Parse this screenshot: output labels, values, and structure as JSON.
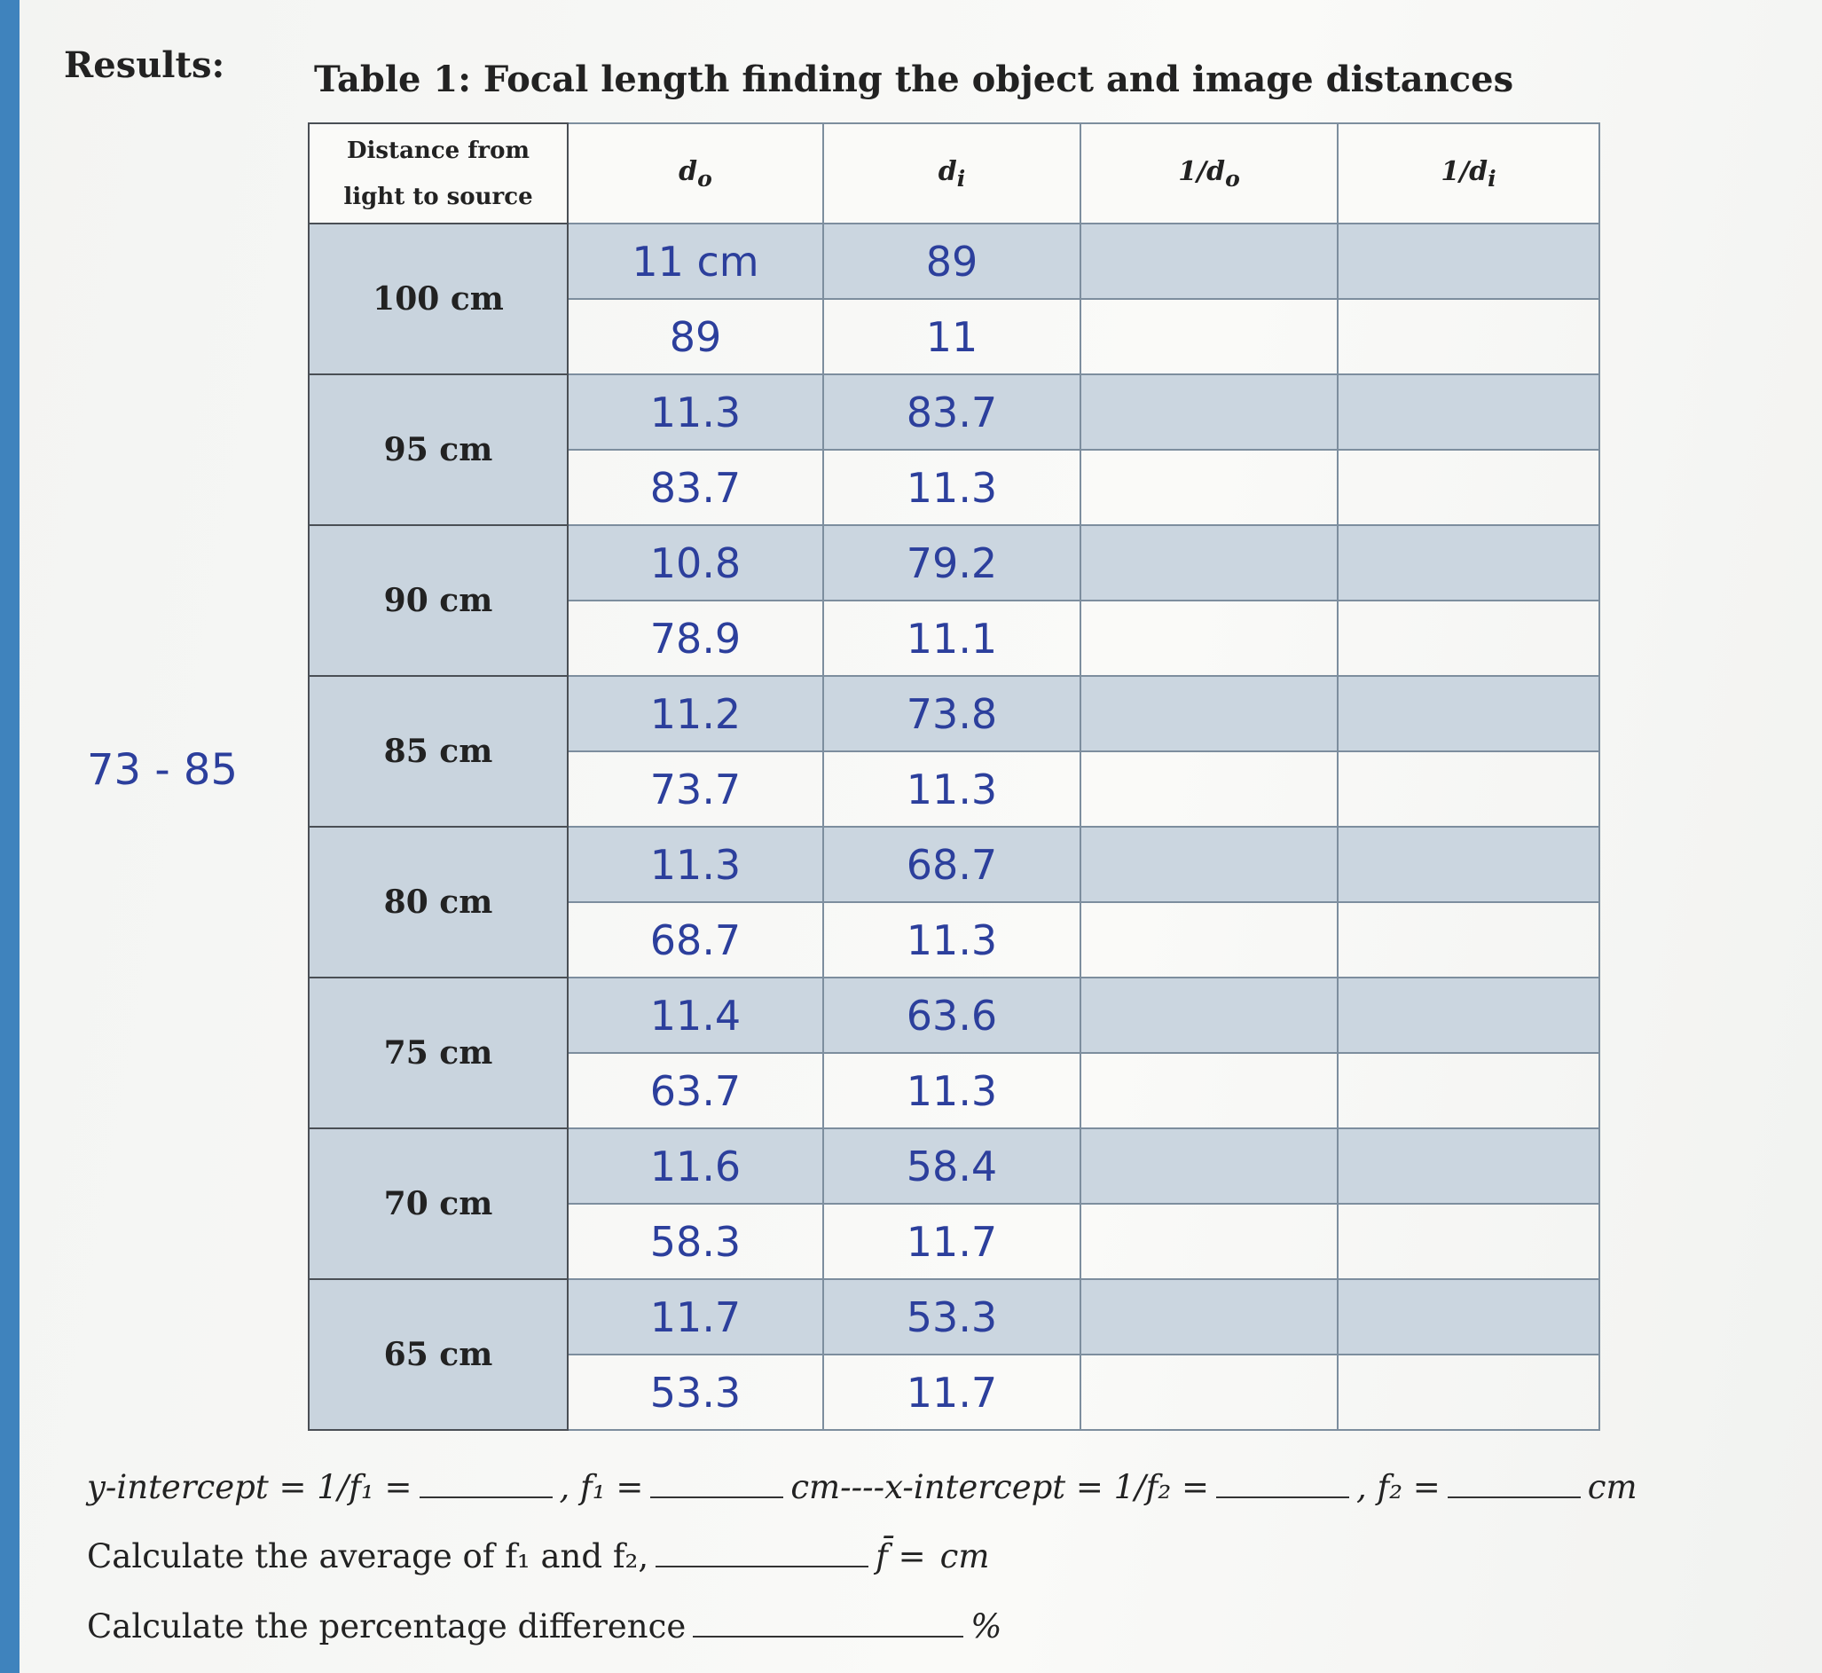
{
  "header": {
    "label": "Results:",
    "title": "Table 1: Focal length finding the object and image distances"
  },
  "table": {
    "columns": [
      {
        "text": "Distance from light to source",
        "sub": null
      },
      {
        "text": "d",
        "sub": "o"
      },
      {
        "text": "d",
        "sub": "i"
      },
      {
        "text": "1/d",
        "sub": "o"
      },
      {
        "text": "1/d",
        "sub": "i"
      }
    ],
    "groups": [
      {
        "distance": "100 cm",
        "rows": [
          [
            "11 cm",
            "89"
          ],
          [
            "89",
            "11"
          ]
        ]
      },
      {
        "distance": "95 cm",
        "rows": [
          [
            "11.3",
            "83.7"
          ],
          [
            "83.7",
            "11.3"
          ]
        ]
      },
      {
        "distance": "90 cm",
        "rows": [
          [
            "10.8",
            "79.2"
          ],
          [
            "78.9",
            "11.1"
          ]
        ]
      },
      {
        "distance": "85 cm",
        "rows": [
          [
            "11.2",
            "73.8"
          ],
          [
            "73.7",
            "11.3"
          ]
        ]
      },
      {
        "distance": "80 cm",
        "rows": [
          [
            "11.3",
            "68.7"
          ],
          [
            "68.7",
            "11.3"
          ]
        ]
      },
      {
        "distance": "75 cm",
        "rows": [
          [
            "11.4",
            "63.6"
          ],
          [
            "63.7",
            "11.3"
          ]
        ]
      },
      {
        "distance": "70 cm",
        "rows": [
          [
            "11.6",
            "58.4"
          ],
          [
            "58.3",
            "11.7"
          ]
        ]
      },
      {
        "distance": "65 cm",
        "rows": [
          [
            "11.7",
            "53.3"
          ],
          [
            "53.3",
            "11.7"
          ]
        ]
      }
    ]
  },
  "margin_note": "73 - 85",
  "footer": [
    [
      "y-intercept = 1/f₁ =",
      ", f₁ =",
      "cm----x-intercept = 1/f₂ =",
      ", f₂ =",
      "cm"
    ],
    [
      "Calculate the average of f₁ and f₂,",
      "f̄ =",
      "cm"
    ],
    [
      "Calculate the percentage difference",
      "%"
    ]
  ]
}
